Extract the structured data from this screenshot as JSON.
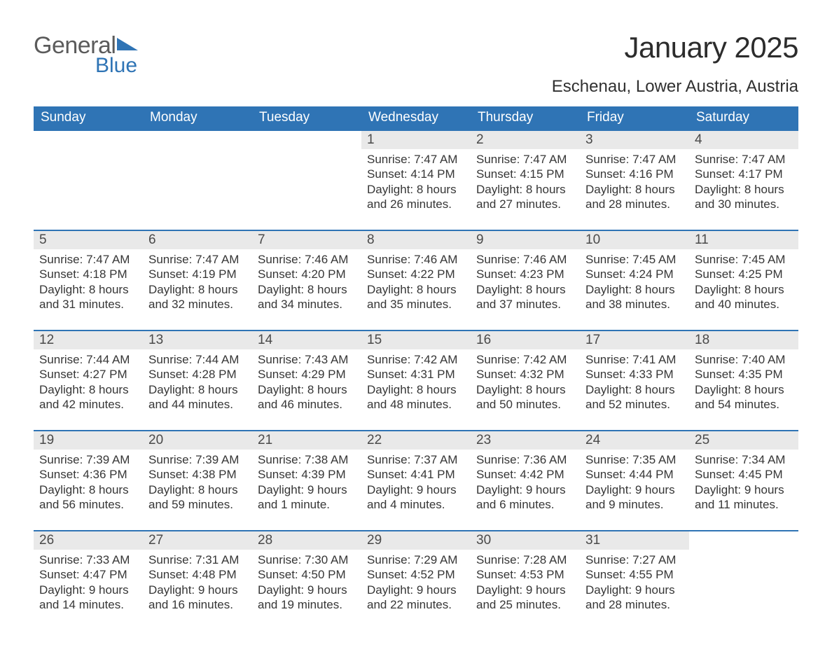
{
  "brand": {
    "word1": "General",
    "word2": "Blue"
  },
  "title": "January 2025",
  "location": "Eschenau, Lower Austria, Austria",
  "colors": {
    "header_bg": "#2f74b5",
    "header_text": "#ffffff",
    "daynum_bg": "#e9e9e9",
    "row_border": "#2f74b5",
    "body_text": "#363636",
    "page_bg": "#ffffff",
    "logo_gray": "#5b5b5b",
    "logo_blue": "#2f74b5"
  },
  "typography": {
    "title_fontsize": 42,
    "location_fontsize": 24,
    "header_fontsize": 19,
    "daynum_fontsize": 19,
    "detail_fontsize": 17
  },
  "day_headers": [
    "Sunday",
    "Monday",
    "Tuesday",
    "Wednesday",
    "Thursday",
    "Friday",
    "Saturday"
  ],
  "weeks": [
    [
      null,
      null,
      null,
      {
        "n": "1",
        "sunrise": "7:47 AM",
        "sunset": "4:14 PM",
        "daylight": "8 hours and 26 minutes."
      },
      {
        "n": "2",
        "sunrise": "7:47 AM",
        "sunset": "4:15 PM",
        "daylight": "8 hours and 27 minutes."
      },
      {
        "n": "3",
        "sunrise": "7:47 AM",
        "sunset": "4:16 PM",
        "daylight": "8 hours and 28 minutes."
      },
      {
        "n": "4",
        "sunrise": "7:47 AM",
        "sunset": "4:17 PM",
        "daylight": "8 hours and 30 minutes."
      }
    ],
    [
      {
        "n": "5",
        "sunrise": "7:47 AM",
        "sunset": "4:18 PM",
        "daylight": "8 hours and 31 minutes."
      },
      {
        "n": "6",
        "sunrise": "7:47 AM",
        "sunset": "4:19 PM",
        "daylight": "8 hours and 32 minutes."
      },
      {
        "n": "7",
        "sunrise": "7:46 AM",
        "sunset": "4:20 PM",
        "daylight": "8 hours and 34 minutes."
      },
      {
        "n": "8",
        "sunrise": "7:46 AM",
        "sunset": "4:22 PM",
        "daylight": "8 hours and 35 minutes."
      },
      {
        "n": "9",
        "sunrise": "7:46 AM",
        "sunset": "4:23 PM",
        "daylight": "8 hours and 37 minutes."
      },
      {
        "n": "10",
        "sunrise": "7:45 AM",
        "sunset": "4:24 PM",
        "daylight": "8 hours and 38 minutes."
      },
      {
        "n": "11",
        "sunrise": "7:45 AM",
        "sunset": "4:25 PM",
        "daylight": "8 hours and 40 minutes."
      }
    ],
    [
      {
        "n": "12",
        "sunrise": "7:44 AM",
        "sunset": "4:27 PM",
        "daylight": "8 hours and 42 minutes."
      },
      {
        "n": "13",
        "sunrise": "7:44 AM",
        "sunset": "4:28 PM",
        "daylight": "8 hours and 44 minutes."
      },
      {
        "n": "14",
        "sunrise": "7:43 AM",
        "sunset": "4:29 PM",
        "daylight": "8 hours and 46 minutes."
      },
      {
        "n": "15",
        "sunrise": "7:42 AM",
        "sunset": "4:31 PM",
        "daylight": "8 hours and 48 minutes."
      },
      {
        "n": "16",
        "sunrise": "7:42 AM",
        "sunset": "4:32 PM",
        "daylight": "8 hours and 50 minutes."
      },
      {
        "n": "17",
        "sunrise": "7:41 AM",
        "sunset": "4:33 PM",
        "daylight": "8 hours and 52 minutes."
      },
      {
        "n": "18",
        "sunrise": "7:40 AM",
        "sunset": "4:35 PM",
        "daylight": "8 hours and 54 minutes."
      }
    ],
    [
      {
        "n": "19",
        "sunrise": "7:39 AM",
        "sunset": "4:36 PM",
        "daylight": "8 hours and 56 minutes."
      },
      {
        "n": "20",
        "sunrise": "7:39 AM",
        "sunset": "4:38 PM",
        "daylight": "8 hours and 59 minutes."
      },
      {
        "n": "21",
        "sunrise": "7:38 AM",
        "sunset": "4:39 PM",
        "daylight": "9 hours and 1 minute."
      },
      {
        "n": "22",
        "sunrise": "7:37 AM",
        "sunset": "4:41 PM",
        "daylight": "9 hours and 4 minutes."
      },
      {
        "n": "23",
        "sunrise": "7:36 AM",
        "sunset": "4:42 PM",
        "daylight": "9 hours and 6 minutes."
      },
      {
        "n": "24",
        "sunrise": "7:35 AM",
        "sunset": "4:44 PM",
        "daylight": "9 hours and 9 minutes."
      },
      {
        "n": "25",
        "sunrise": "7:34 AM",
        "sunset": "4:45 PM",
        "daylight": "9 hours and 11 minutes."
      }
    ],
    [
      {
        "n": "26",
        "sunrise": "7:33 AM",
        "sunset": "4:47 PM",
        "daylight": "9 hours and 14 minutes."
      },
      {
        "n": "27",
        "sunrise": "7:31 AM",
        "sunset": "4:48 PM",
        "daylight": "9 hours and 16 minutes."
      },
      {
        "n": "28",
        "sunrise": "7:30 AM",
        "sunset": "4:50 PM",
        "daylight": "9 hours and 19 minutes."
      },
      {
        "n": "29",
        "sunrise": "7:29 AM",
        "sunset": "4:52 PM",
        "daylight": "9 hours and 22 minutes."
      },
      {
        "n": "30",
        "sunrise": "7:28 AM",
        "sunset": "4:53 PM",
        "daylight": "9 hours and 25 minutes."
      },
      {
        "n": "31",
        "sunrise": "7:27 AM",
        "sunset": "4:55 PM",
        "daylight": "9 hours and 28 minutes."
      },
      null
    ]
  ],
  "labels": {
    "sunrise": "Sunrise: ",
    "sunset": "Sunset: ",
    "daylight": "Daylight: "
  }
}
